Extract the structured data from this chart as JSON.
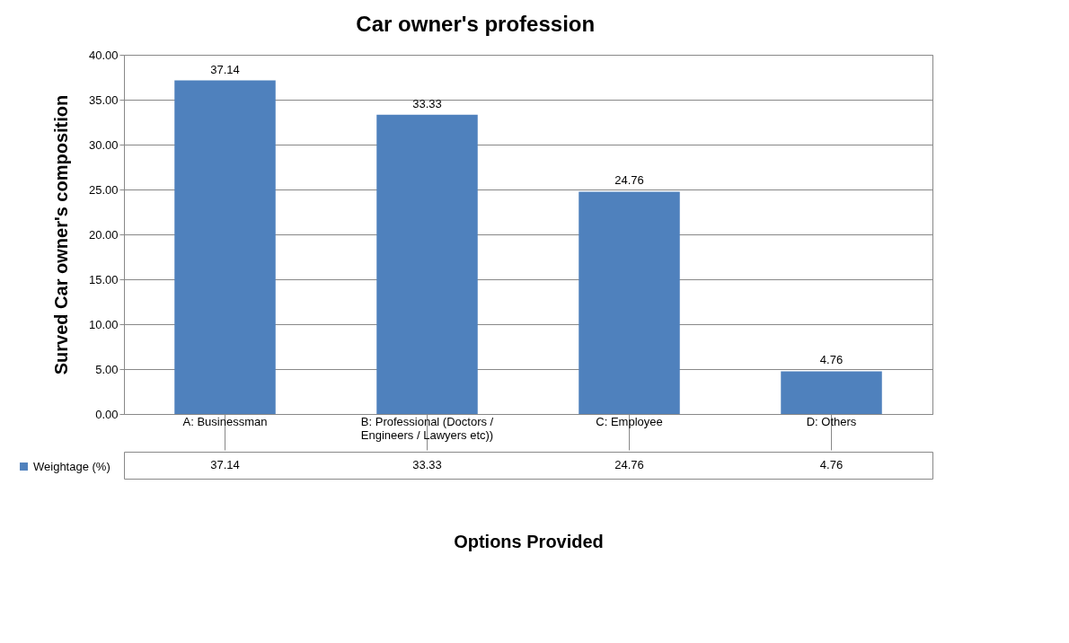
{
  "chart_data": {
    "type": "bar",
    "title": "Car owner's profession",
    "xlabel": "Options Provided",
    "ylabel": "Surved Car owner's composition",
    "categories": [
      "A: Businessman",
      "B: Professional (Doctors / Engineers / Lawyers etc))",
      "C: Employee",
      "D: Others"
    ],
    "series": [
      {
        "name": "Weightage (%)",
        "color": "#4f81bd",
        "values": [
          37.14,
          33.33,
          24.76,
          4.76
        ],
        "value_labels": [
          "37.14",
          "33.33",
          "24.76",
          "4.76"
        ]
      }
    ],
    "ylim": [
      0,
      40
    ],
    "yticks": [
      {
        "value": 0,
        "label": "0.00"
      },
      {
        "value": 5,
        "label": "5.00"
      },
      {
        "value": 10,
        "label": "10.00"
      },
      {
        "value": 15,
        "label": "15.00"
      },
      {
        "value": 20,
        "label": "20.00"
      },
      {
        "value": 25,
        "label": "25.00"
      },
      {
        "value": 30,
        "label": "30.00"
      },
      {
        "value": 35,
        "label": "35.00"
      },
      {
        "value": 40,
        "label": "40.00"
      }
    ],
    "annotations": [
      "37.14",
      "33.33",
      "24.76",
      "4.76"
    ],
    "grid": "y",
    "legend": "bottom left"
  }
}
